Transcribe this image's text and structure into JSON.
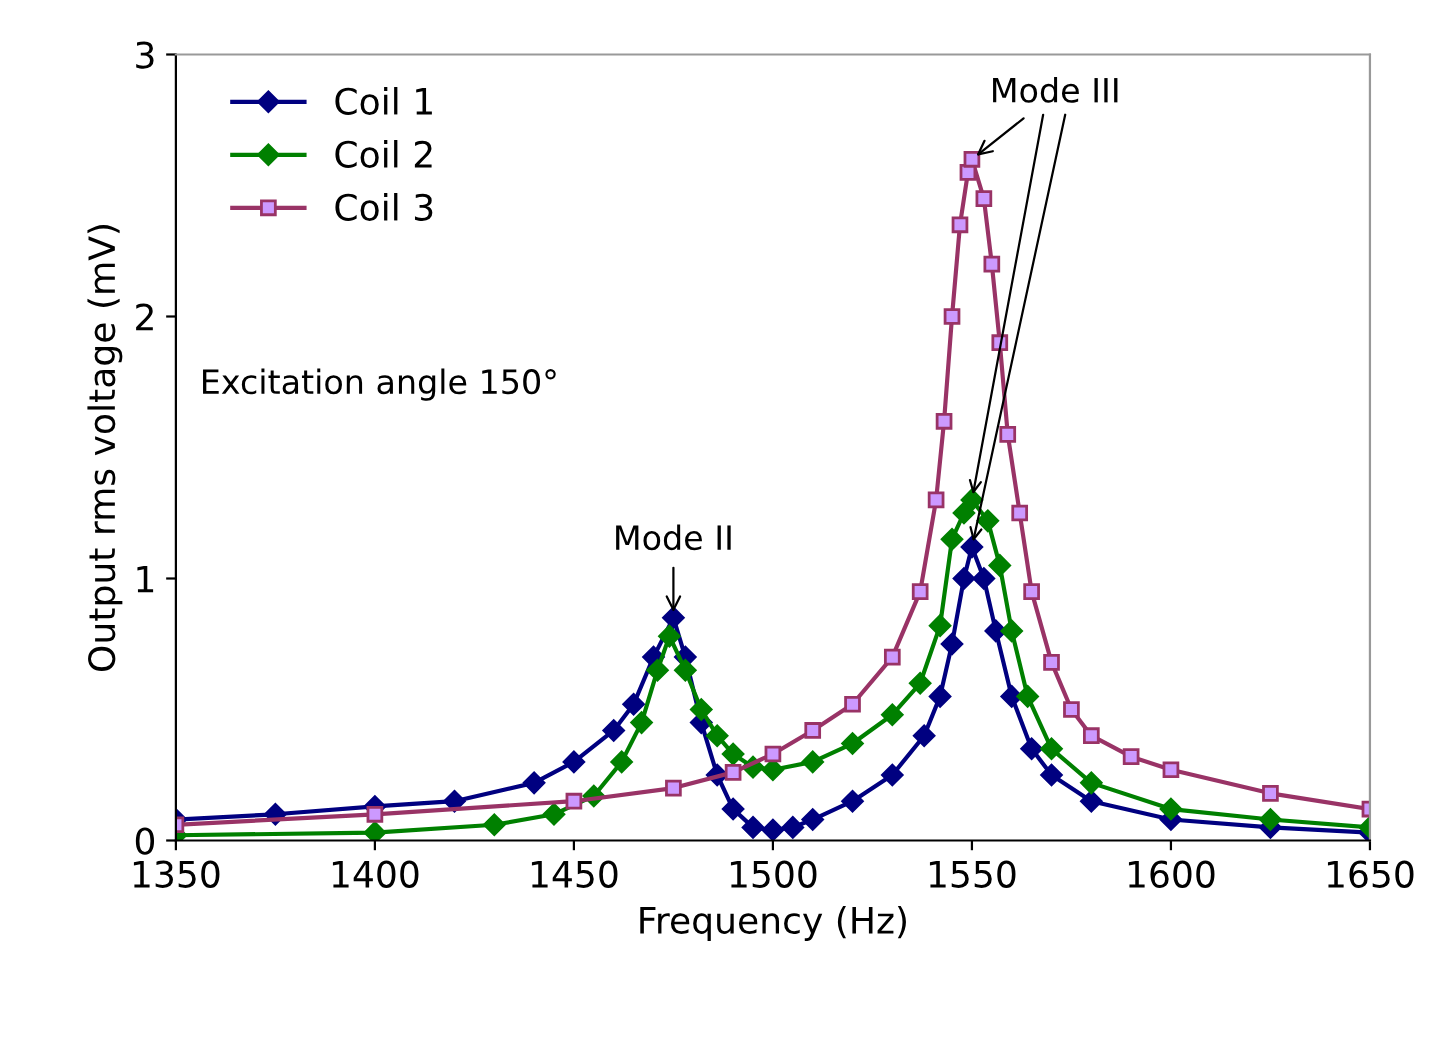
{
  "chart_data": {
    "type": "line",
    "xlabel": "Frequency (Hz)",
    "ylabel": "Output rms voltage (mV)",
    "xlim": [
      1350,
      1650
    ],
    "xticks": [
      1350,
      1400,
      1450,
      1500,
      1550,
      1600,
      1650
    ],
    "ylim": [
      0,
      3
    ],
    "yticks": [
      0,
      1,
      2,
      3
    ],
    "grid": false,
    "legend": "top left",
    "line_style": "solid",
    "series": [
      {
        "name": "Coil 1",
        "color": "#000080",
        "marker": "diamond",
        "x": [
          1350,
          1375,
          1400,
          1420,
          1440,
          1450,
          1460,
          1465,
          1470,
          1475,
          1478,
          1482,
          1486,
          1490,
          1495,
          1500,
          1505,
          1510,
          1520,
          1530,
          1538,
          1542,
          1545,
          1548,
          1550,
          1553,
          1556,
          1560,
          1565,
          1570,
          1580,
          1600,
          1625,
          1650
        ],
        "values": [
          0.08,
          0.1,
          0.13,
          0.15,
          0.22,
          0.3,
          0.42,
          0.52,
          0.7,
          0.85,
          0.7,
          0.45,
          0.25,
          0.12,
          0.05,
          0.04,
          0.05,
          0.08,
          0.15,
          0.25,
          0.4,
          0.55,
          0.75,
          1.0,
          1.12,
          1.0,
          0.8,
          0.55,
          0.35,
          0.25,
          0.15,
          0.08,
          0.05,
          0.03
        ]
      },
      {
        "name": "Coil 2",
        "color": "#008000",
        "marker": "diamond",
        "x": [
          1350,
          1400,
          1430,
          1445,
          1455,
          1462,
          1467,
          1471,
          1474,
          1478,
          1482,
          1486,
          1490,
          1495,
          1500,
          1510,
          1520,
          1530,
          1537,
          1542,
          1545,
          1548,
          1550,
          1554,
          1557,
          1560,
          1564,
          1570,
          1580,
          1600,
          1625,
          1650
        ],
        "values": [
          0.02,
          0.03,
          0.06,
          0.1,
          0.17,
          0.3,
          0.45,
          0.65,
          0.78,
          0.65,
          0.5,
          0.4,
          0.33,
          0.28,
          0.27,
          0.3,
          0.37,
          0.48,
          0.6,
          0.82,
          1.15,
          1.25,
          1.3,
          1.22,
          1.05,
          0.8,
          0.55,
          0.35,
          0.22,
          0.12,
          0.08,
          0.05
        ]
      },
      {
        "name": "Coil 3",
        "color": "#993366",
        "marker": "square",
        "x": [
          1350,
          1400,
          1450,
          1475,
          1490,
          1500,
          1510,
          1520,
          1530,
          1537,
          1541,
          1543,
          1545,
          1547,
          1549,
          1550,
          1553,
          1555,
          1557,
          1559,
          1562,
          1565,
          1570,
          1575,
          1580,
          1590,
          1600,
          1625,
          1650
        ],
        "values": [
          0.06,
          0.1,
          0.15,
          0.2,
          0.26,
          0.33,
          0.42,
          0.52,
          0.7,
          0.95,
          1.3,
          1.6,
          2.0,
          2.35,
          2.55,
          2.6,
          2.45,
          2.2,
          1.9,
          1.55,
          1.25,
          0.95,
          0.68,
          0.5,
          0.4,
          0.32,
          0.27,
          0.18,
          0.12
        ]
      }
    ],
    "annotations": [
      {
        "text": "Mode II",
        "x": 1475,
        "y": 0.85
      },
      {
        "text": "Mode III",
        "x": 1550,
        "y": 2.6
      },
      "Excitation angle 150°"
    ]
  }
}
